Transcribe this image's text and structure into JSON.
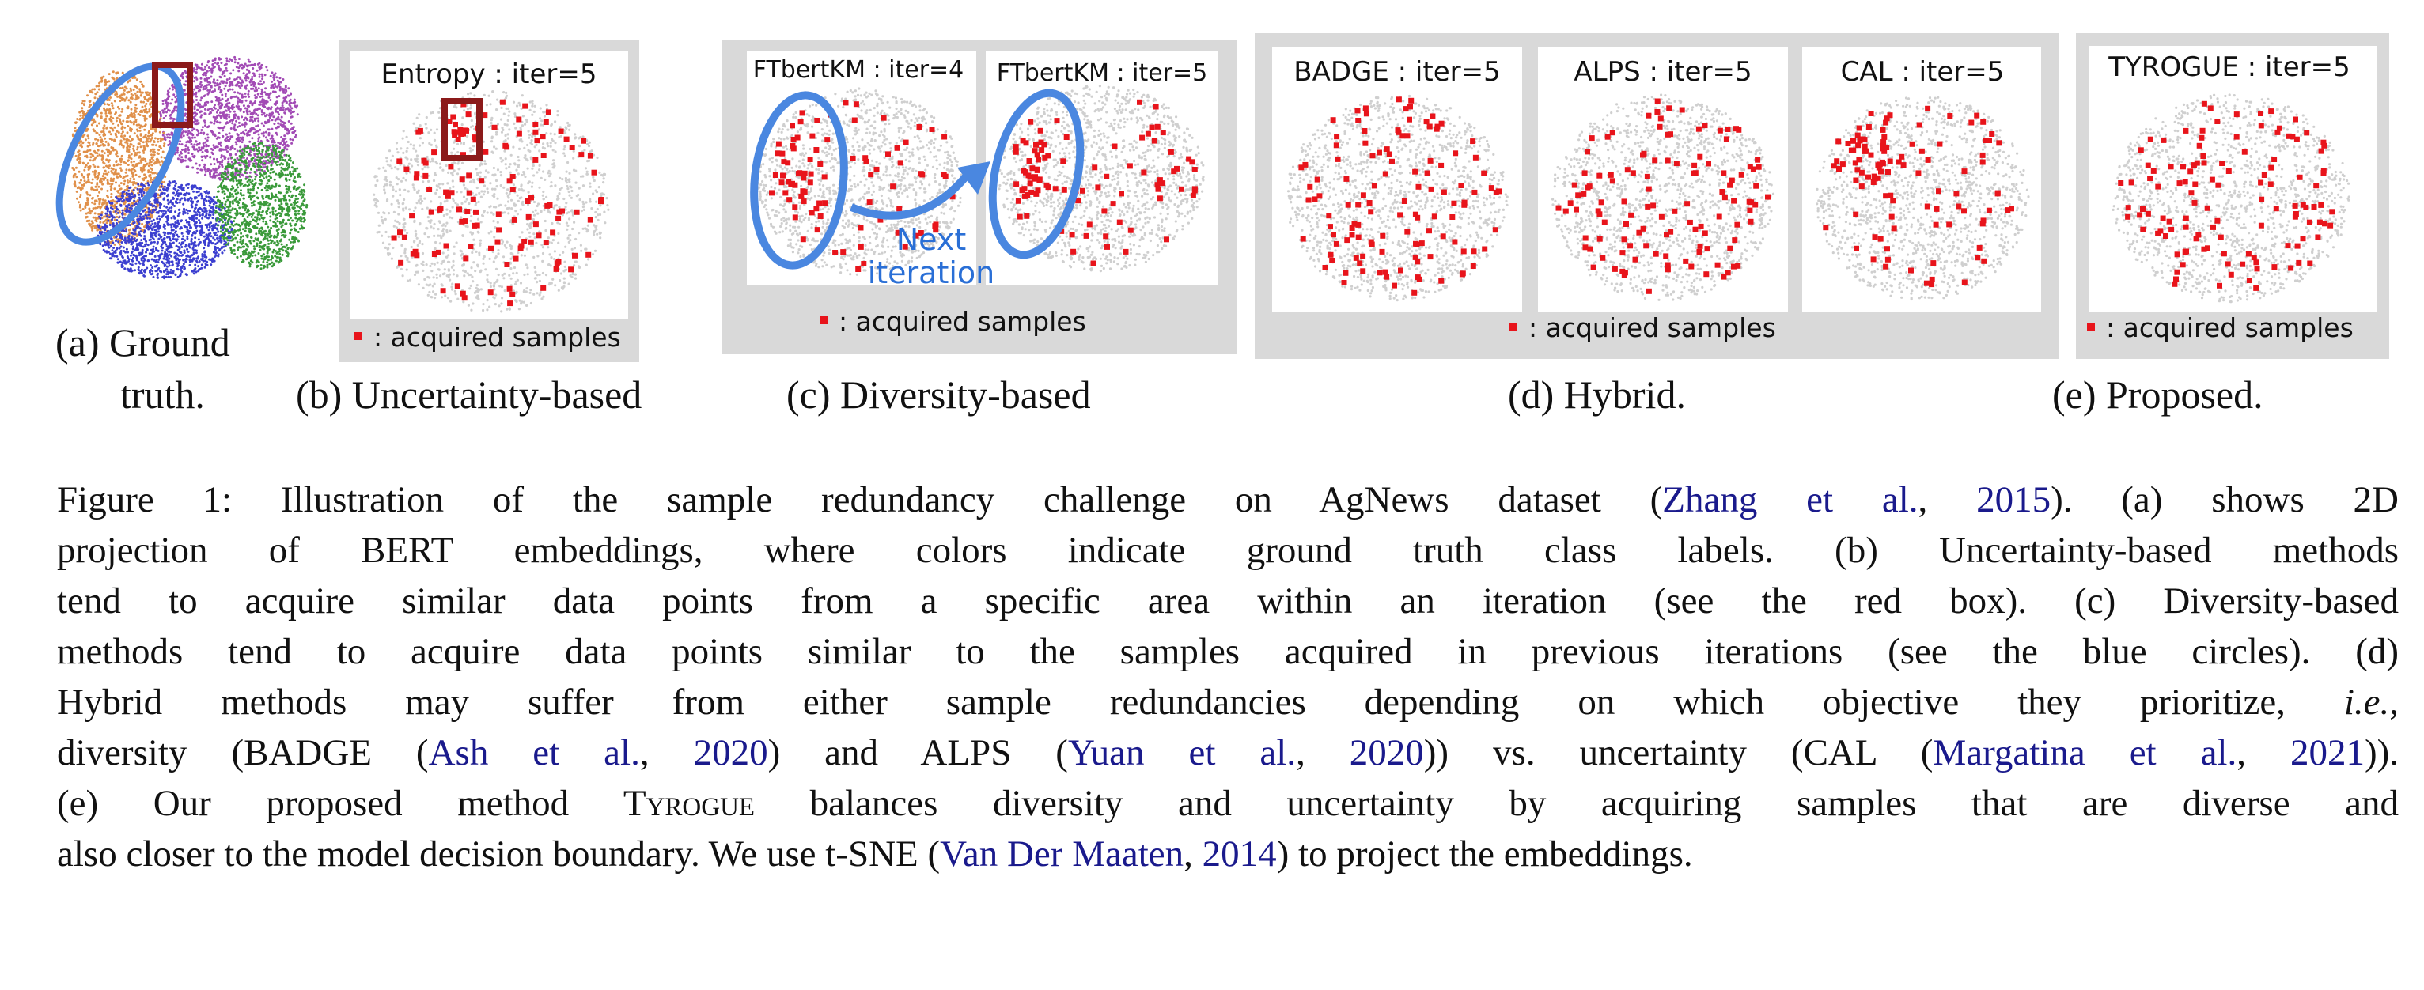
{
  "panels": {
    "a": {
      "label_line1": "(a) Ground",
      "label_line2": "truth."
    },
    "b": {
      "title": "Entropy : iter=5",
      "legend": ": acquired samples",
      "label": "(b) Uncertainty-based"
    },
    "c": {
      "title_left": "FTbertKM : iter=4",
      "title_right": "FTbertKM : iter=5",
      "arrow_line1": "Next",
      "arrow_line2": "iteration",
      "legend": ": acquired samples",
      "label": "(c) Diversity-based"
    },
    "d": {
      "titles": [
        "BADGE : iter=5",
        "ALPS : iter=5",
        "CAL : iter=5"
      ],
      "legend": ": acquired samples",
      "label": "(d) Hybrid."
    },
    "e": {
      "title": "TYROGUE : iter=5",
      "legend": ": acquired samples",
      "label": "(e) Proposed."
    }
  },
  "caption": {
    "l1_a": "Figure 1: Illustration of the sample redundancy challenge on AgNews dataset (",
    "l1_c1": "Zhang et al.",
    "l1_b": ", ",
    "l1_c2": "2015",
    "l1_d": "). (a) shows 2D",
    "l2": "projection of BERT embeddings, where colors indicate ground truth class labels. (b) Uncertainty-based methods",
    "l3": "tend to acquire similar data points from a specific area within an iteration (see the red box). (c) Diversity-based",
    "l4": "methods tend to acquire data points similar to the samples acquired in previous iterations (see the blue circles). (d)",
    "l5_a": "Hybrid methods may suffer from either sample redundancies depending on which objective they prioritize, ",
    "l5_ie": "i.e.",
    "l5_b": ",",
    "l6_a": "diversity (BADGE (",
    "l6_c1": "Ash et al.",
    "l6_b": ", ",
    "l6_c2": "2020",
    "l6_c": ") and ALPS (",
    "l6_c3": "Yuan et al.",
    "l6_d": ", ",
    "l6_c4": "2020",
    "l6_e": ")) vs. uncertainty (CAL (",
    "l6_c5": "Margatina et al.",
    "l6_f": ", ",
    "l6_c6": "2021",
    "l6_g": ")).",
    "l7_a": "(e) Our proposed method T",
    "l7_sc": "yrogue",
    "l7_b": " balances diversity and uncertainty by acquiring samples that are diverse and",
    "l8_a": "also closer to the model decision boundary. We use t-SNE (",
    "l8_c1": "Van Der Maaten",
    "l8_b": ", ",
    "l8_c2": "2014",
    "l8_c": ") to project the embeddings."
  },
  "colors": {
    "panel_bg": "#d9d9d9",
    "point_gray": "#cfcfcf",
    "acquired": "#e8141b",
    "box_red": "#8b1a1a",
    "circle_blue": "#4a87e0",
    "text_blue": "#2a6fd6",
    "cite_blue": "#1a1a8c",
    "cluster_orange": "#e0904a",
    "cluster_purple": "#a24bb5",
    "cluster_blue": "#3c3fd0",
    "cluster_green": "#3a9a3a"
  }
}
